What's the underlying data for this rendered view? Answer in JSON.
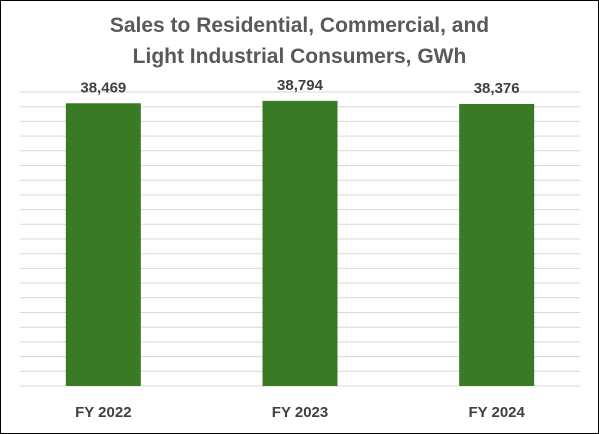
{
  "chart_data": {
    "type": "bar",
    "title_lines": [
      "Sales to Residential, Commercial, and",
      "Light Industrial Consumers, GWh"
    ],
    "categories": [
      "FY 2022",
      "FY 2023",
      "FY 2024"
    ],
    "values": [
      38469,
      38794,
      38376
    ],
    "data_labels": [
      "38,469",
      "38,794",
      "38,376"
    ],
    "xlabel": "",
    "ylabel": "",
    "ylim": [
      0,
      40000
    ],
    "grid": true,
    "legend": "none",
    "bar_color": "#3b7a25",
    "gridline_color": "#d9d9d9"
  }
}
